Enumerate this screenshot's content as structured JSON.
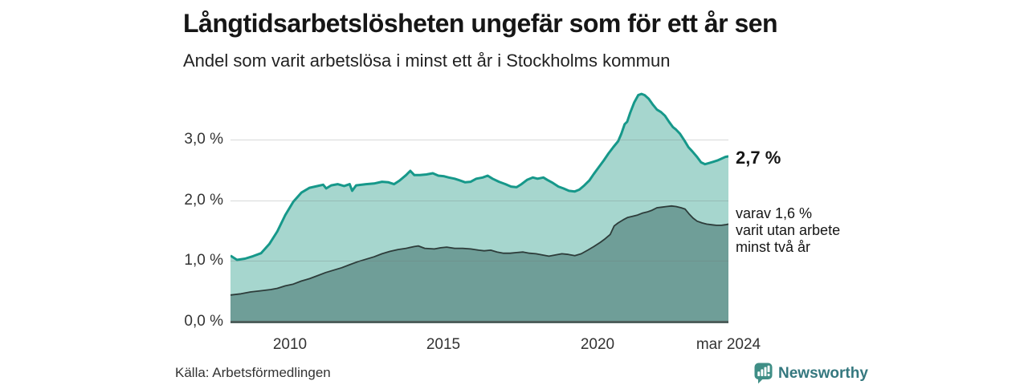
{
  "header": {
    "title": "Långtidsarbetslösheten ungefär som för ett år sen",
    "subtitle": "Andel som varit arbetslösa i minst ett år i Stockholms kommun"
  },
  "annotations": {
    "total_end_value": "2,7 %",
    "two_year_lines": [
      "varav 1,6 %",
      "varit utan arbete",
      "minst två år"
    ]
  },
  "footer": {
    "source": "Källa: Arbetsförmedlingen",
    "brand": "Newsworthy"
  },
  "colors": {
    "total_line": "#16988a",
    "total_fill": "#a6d6ce",
    "two_year_line": "#2d3c3a",
    "two_year_fill": "#6f9e98",
    "axis": "#4e5f5c",
    "brand_icon": "#3f8e86",
    "brand_text": "#35787f"
  },
  "chart_data": {
    "type": "area",
    "title": "Långtidsarbetslösheten ungefär som för ett år sen",
    "subtitle": "Andel som varit arbetslösa i minst ett år i Stockholms kommun",
    "unit": "%",
    "x_domain": [
      2008.08,
      2024.25
    ],
    "ylim": [
      0,
      3.92
    ],
    "grid": true,
    "legend_position": "right-annotations",
    "y_ticks": [
      {
        "value": 0,
        "label": "0,0 %"
      },
      {
        "value": 1,
        "label": "1,0 %"
      },
      {
        "value": 2,
        "label": "2,0 %"
      },
      {
        "value": 3,
        "label": "3,0 %"
      }
    ],
    "x_ticks": [
      {
        "value": 2010,
        "label": "2010"
      },
      {
        "value": 2015,
        "label": "2015"
      },
      {
        "value": 2020,
        "label": "2020"
      },
      {
        "value": 2024.25,
        "label": "mar 2024"
      }
    ],
    "series": [
      {
        "name": "Andel arbetslösa minst ett år",
        "end_label": "2,7 %",
        "points": [
          [
            2008.08,
            1.09
          ],
          [
            2008.29,
            1.02
          ],
          [
            2008.55,
            1.04
          ],
          [
            2008.81,
            1.08
          ],
          [
            2009.07,
            1.13
          ],
          [
            2009.34,
            1.28
          ],
          [
            2009.6,
            1.49
          ],
          [
            2009.86,
            1.76
          ],
          [
            2010.12,
            1.98
          ],
          [
            2010.38,
            2.13
          ],
          [
            2010.65,
            2.21
          ],
          [
            2010.91,
            2.24
          ],
          [
            2011.09,
            2.26
          ],
          [
            2011.19,
            2.2
          ],
          [
            2011.35,
            2.25
          ],
          [
            2011.56,
            2.27
          ],
          [
            2011.77,
            2.24
          ],
          [
            2011.95,
            2.27
          ],
          [
            2012.03,
            2.16
          ],
          [
            2012.16,
            2.25
          ],
          [
            2012.48,
            2.27
          ],
          [
            2012.74,
            2.28
          ],
          [
            2013.0,
            2.31
          ],
          [
            2013.21,
            2.3
          ],
          [
            2013.39,
            2.27
          ],
          [
            2013.57,
            2.33
          ],
          [
            2013.78,
            2.42
          ],
          [
            2013.92,
            2.49
          ],
          [
            2014.05,
            2.42
          ],
          [
            2014.23,
            2.42
          ],
          [
            2014.44,
            2.43
          ],
          [
            2014.65,
            2.45
          ],
          [
            2014.83,
            2.41
          ],
          [
            2015.02,
            2.4
          ],
          [
            2015.17,
            2.38
          ],
          [
            2015.36,
            2.36
          ],
          [
            2015.54,
            2.33
          ],
          [
            2015.7,
            2.3
          ],
          [
            2015.88,
            2.31
          ],
          [
            2016.06,
            2.36
          ],
          [
            2016.27,
            2.38
          ],
          [
            2016.43,
            2.41
          ],
          [
            2016.59,
            2.36
          ],
          [
            2016.8,
            2.31
          ],
          [
            2017.01,
            2.27
          ],
          [
            2017.19,
            2.23
          ],
          [
            2017.37,
            2.22
          ],
          [
            2017.53,
            2.27
          ],
          [
            2017.71,
            2.34
          ],
          [
            2017.9,
            2.38
          ],
          [
            2018.05,
            2.36
          ],
          [
            2018.24,
            2.38
          ],
          [
            2018.37,
            2.34
          ],
          [
            2018.55,
            2.29
          ],
          [
            2018.73,
            2.23
          ],
          [
            2018.89,
            2.2
          ],
          [
            2019.07,
            2.16
          ],
          [
            2019.26,
            2.15
          ],
          [
            2019.41,
            2.18
          ],
          [
            2019.57,
            2.25
          ],
          [
            2019.73,
            2.33
          ],
          [
            2019.88,
            2.44
          ],
          [
            2020.04,
            2.55
          ],
          [
            2020.2,
            2.66
          ],
          [
            2020.36,
            2.78
          ],
          [
            2020.51,
            2.88
          ],
          [
            2020.67,
            2.98
          ],
          [
            2020.77,
            3.1
          ],
          [
            2020.88,
            3.26
          ],
          [
            2020.96,
            3.3
          ],
          [
            2021.06,
            3.45
          ],
          [
            2021.19,
            3.62
          ],
          [
            2021.32,
            3.74
          ],
          [
            2021.43,
            3.76
          ],
          [
            2021.53,
            3.74
          ],
          [
            2021.66,
            3.68
          ],
          [
            2021.8,
            3.58
          ],
          [
            2021.93,
            3.5
          ],
          [
            2022.06,
            3.46
          ],
          [
            2022.19,
            3.4
          ],
          [
            2022.32,
            3.3
          ],
          [
            2022.45,
            3.21
          ],
          [
            2022.55,
            3.17
          ],
          [
            2022.68,
            3.1
          ],
          [
            2022.82,
            2.99
          ],
          [
            2022.95,
            2.88
          ],
          [
            2023.08,
            2.81
          ],
          [
            2023.23,
            2.72
          ],
          [
            2023.36,
            2.63
          ],
          [
            2023.49,
            2.6
          ],
          [
            2023.63,
            2.62
          ],
          [
            2023.76,
            2.64
          ],
          [
            2023.89,
            2.66
          ],
          [
            2024.02,
            2.69
          ],
          [
            2024.15,
            2.72
          ],
          [
            2024.25,
            2.73
          ]
        ]
      },
      {
        "name": "varav utan arbete minst två år",
        "end_label": "varav 1,6 % varit utan arbete minst två år",
        "points": [
          [
            2008.08,
            0.44
          ],
          [
            2008.42,
            0.46
          ],
          [
            2008.73,
            0.49
          ],
          [
            2009.07,
            0.51
          ],
          [
            2009.39,
            0.53
          ],
          [
            2009.6,
            0.55
          ],
          [
            2009.86,
            0.59
          ],
          [
            2010.12,
            0.62
          ],
          [
            2010.38,
            0.67
          ],
          [
            2010.65,
            0.71
          ],
          [
            2010.91,
            0.76
          ],
          [
            2011.17,
            0.81
          ],
          [
            2011.43,
            0.85
          ],
          [
            2011.69,
            0.89
          ],
          [
            2011.95,
            0.94
          ],
          [
            2012.22,
            0.99
          ],
          [
            2012.48,
            1.03
          ],
          [
            2012.74,
            1.07
          ],
          [
            2013.0,
            1.12
          ],
          [
            2013.26,
            1.16
          ],
          [
            2013.52,
            1.19
          ],
          [
            2013.78,
            1.21
          ],
          [
            2014.05,
            1.24
          ],
          [
            2014.18,
            1.25
          ],
          [
            2014.39,
            1.21
          ],
          [
            2014.7,
            1.2
          ],
          [
            2014.91,
            1.22
          ],
          [
            2015.1,
            1.23
          ],
          [
            2015.36,
            1.21
          ],
          [
            2015.62,
            1.21
          ],
          [
            2015.88,
            1.2
          ],
          [
            2016.14,
            1.18
          ],
          [
            2016.32,
            1.17
          ],
          [
            2016.53,
            1.18
          ],
          [
            2016.74,
            1.15
          ],
          [
            2016.95,
            1.13
          ],
          [
            2017.16,
            1.13
          ],
          [
            2017.37,
            1.14
          ],
          [
            2017.58,
            1.15
          ],
          [
            2017.79,
            1.13
          ],
          [
            2018.0,
            1.12
          ],
          [
            2018.21,
            1.1
          ],
          [
            2018.42,
            1.08
          ],
          [
            2018.63,
            1.1
          ],
          [
            2018.84,
            1.12
          ],
          [
            2019.05,
            1.11
          ],
          [
            2019.26,
            1.09
          ],
          [
            2019.47,
            1.12
          ],
          [
            2019.68,
            1.18
          ],
          [
            2019.88,
            1.24
          ],
          [
            2020.09,
            1.31
          ],
          [
            2020.25,
            1.37
          ],
          [
            2020.41,
            1.44
          ],
          [
            2020.54,
            1.58
          ],
          [
            2020.67,
            1.63
          ],
          [
            2020.83,
            1.68
          ],
          [
            2020.98,
            1.72
          ],
          [
            2021.14,
            1.74
          ],
          [
            2021.3,
            1.76
          ],
          [
            2021.45,
            1.79
          ],
          [
            2021.61,
            1.81
          ],
          [
            2021.77,
            1.84
          ],
          [
            2021.93,
            1.88
          ],
          [
            2022.08,
            1.89
          ],
          [
            2022.24,
            1.9
          ],
          [
            2022.4,
            1.91
          ],
          [
            2022.55,
            1.9
          ],
          [
            2022.71,
            1.88
          ],
          [
            2022.84,
            1.86
          ],
          [
            2022.97,
            1.78
          ],
          [
            2023.1,
            1.71
          ],
          [
            2023.23,
            1.66
          ],
          [
            2023.39,
            1.63
          ],
          [
            2023.54,
            1.61
          ],
          [
            2023.7,
            1.6
          ],
          [
            2023.86,
            1.59
          ],
          [
            2024.02,
            1.59
          ],
          [
            2024.15,
            1.6
          ],
          [
            2024.25,
            1.61
          ]
        ]
      }
    ]
  }
}
